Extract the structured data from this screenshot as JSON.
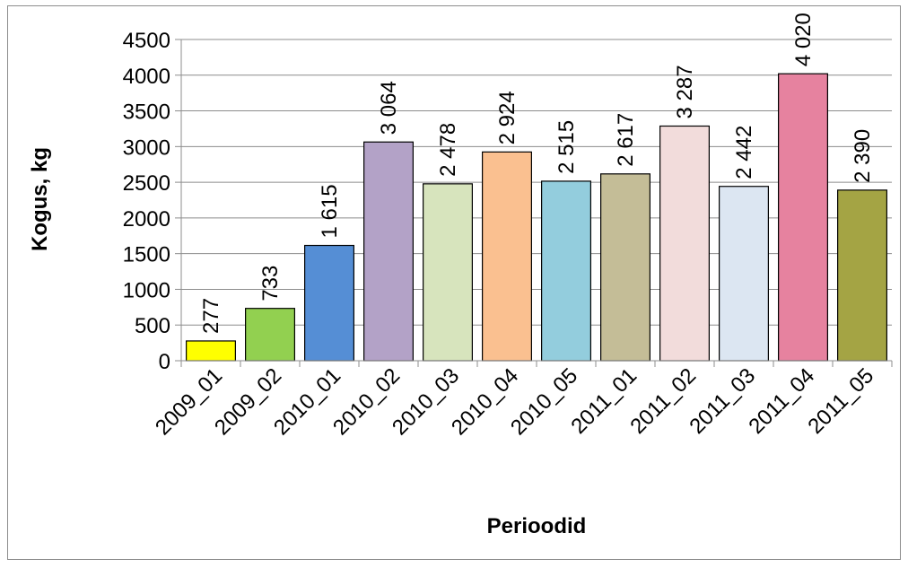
{
  "chart_data": {
    "type": "bar",
    "categories": [
      "2009_01",
      "2009_02",
      "2010_01",
      "2010_02",
      "2010_03",
      "2010_04",
      "2010_05",
      "2011_01",
      "2011_02",
      "2011_03",
      "2011_04",
      "2011_05"
    ],
    "values": [
      277,
      733,
      1615,
      3064,
      2478,
      2924,
      2515,
      2617,
      3287,
      2442,
      4020,
      2390
    ],
    "value_labels": [
      "277",
      "733",
      "1 615",
      "3 064",
      "2 478",
      "2 924",
      "2 515",
      "2 617",
      "3 287",
      "2 442",
      "4 020",
      "2 390"
    ],
    "colors": [
      "#FFFF00",
      "#92D050",
      "#558ED5",
      "#B3A2C7",
      "#D7E4BD",
      "#FAC090",
      "#93CDDD",
      "#C4BD97",
      "#F2DCDB",
      "#DCE6F2",
      "#E6829F",
      "#A4A444"
    ],
    "xlabel": "Perioodid",
    "ylabel": "Kogus, kg",
    "ylim": [
      0,
      4500
    ],
    "yticks": [
      0,
      500,
      1000,
      1500,
      2000,
      2500,
      3000,
      3500,
      4000,
      4500
    ],
    "grid": true,
    "legend": "none"
  }
}
